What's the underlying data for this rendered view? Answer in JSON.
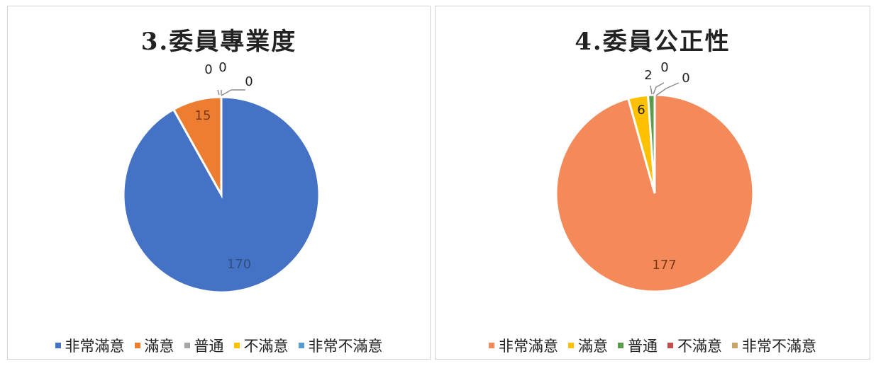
{
  "chart_data": [
    {
      "type": "pie",
      "title": "3.委員專業度",
      "categories": [
        "非常滿意",
        "滿意",
        "普通",
        "不滿意",
        "非常不滿意"
      ],
      "values": [
        170,
        15,
        0,
        0,
        0
      ],
      "colors": [
        "#4472c4",
        "#ed7d31",
        "#a5a5a5",
        "#ffc000",
        "#5b9bd5"
      ],
      "legend_position": "bottom"
    },
    {
      "type": "pie",
      "title": "4.委員公正性",
      "categories": [
        "非常滿意",
        "滿意",
        "普通",
        "不滿意",
        "非常不滿意"
      ],
      "values": [
        177,
        6,
        2,
        0,
        0
      ],
      "colors": [
        "#f4895a",
        "#ffc000",
        "#5b9b4c",
        "#c0504d",
        "#c9a46a"
      ],
      "legend_position": "bottom"
    }
  ]
}
